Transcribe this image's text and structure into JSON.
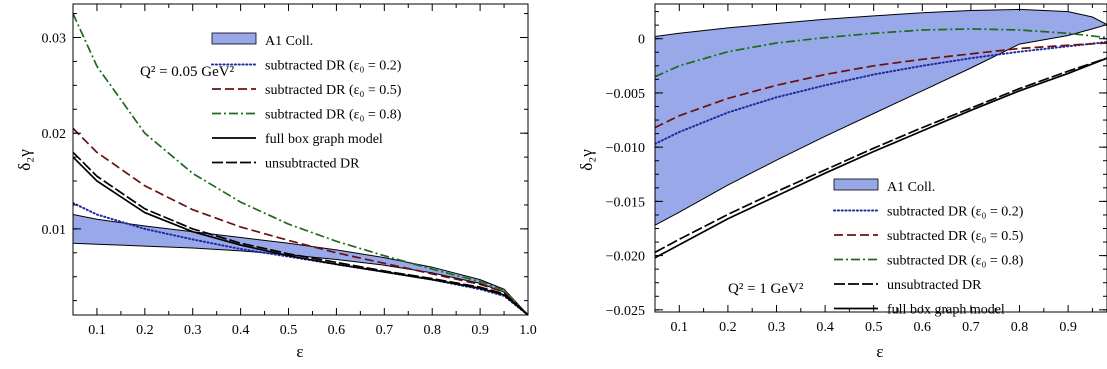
{
  "chart_data": [
    {
      "type": "line",
      "id": "left",
      "annotation": "Q² = 0.05 GeV²",
      "xlabel": "ε",
      "ylabel": "δ₂γ",
      "xlim": [
        0.05,
        1.0
      ],
      "ylim": [
        0.001,
        0.0335
      ],
      "xticks": [
        0.1,
        0.2,
        0.3,
        0.4,
        0.5,
        0.6,
        0.7,
        0.8,
        0.9,
        1.0
      ],
      "xtick_labels": [
        "0.1",
        "0.2",
        "0.3",
        "0.4",
        "0.5",
        "0.6",
        "0.7",
        "0.8",
        "0.9",
        "1.0"
      ],
      "yticks": [
        0.01,
        0.02,
        0.03
      ],
      "ytick_labels": [
        "0.01",
        "0.02",
        "0.03"
      ],
      "legend_position": "top-right",
      "band": {
        "name": "A1 Coll.",
        "color": "#99a8e8",
        "x": [
          0.05,
          0.1,
          0.2,
          0.3,
          0.4,
          0.5,
          0.6,
          0.7,
          0.8,
          0.9,
          0.95,
          1.0
        ],
        "upper": [
          0.0115,
          0.011,
          0.0103,
          0.0097,
          0.0091,
          0.0085,
          0.0078,
          0.007,
          0.006,
          0.0047,
          0.0037,
          0.001
        ],
        "lower": [
          0.0085,
          0.0084,
          0.0082,
          0.008,
          0.0077,
          0.0073,
          0.0068,
          0.0062,
          0.0054,
          0.0043,
          0.0034,
          0.001
        ]
      },
      "series": [
        {
          "name": "subtracted DR (ε₀ = 0.2)",
          "color": "#1f2aa0",
          "dash": "dotted",
          "x": [
            0.05,
            0.1,
            0.2,
            0.3,
            0.4,
            0.5,
            0.6,
            0.7,
            0.8,
            0.9,
            0.95,
            1.0
          ],
          "y": [
            0.0127,
            0.0115,
            0.01,
            0.0089,
            0.0079,
            0.0071,
            0.0063,
            0.0055,
            0.0047,
            0.0037,
            0.003,
            0.001
          ]
        },
        {
          "name": "subtracted DR (ε₀ = 0.5)",
          "color": "#6b1010",
          "dash": "dashed",
          "x": [
            0.05,
            0.1,
            0.2,
            0.3,
            0.4,
            0.5,
            0.6,
            0.7,
            0.8,
            0.9,
            0.95,
            1.0
          ],
          "y": [
            0.0205,
            0.018,
            0.0145,
            0.012,
            0.0102,
            0.0088,
            0.0075,
            0.0064,
            0.0053,
            0.0042,
            0.0034,
            0.001
          ]
        },
        {
          "name": "subtracted DR (ε₀ = 0.8)",
          "color": "#1c6b1c",
          "dash": "dashdot",
          "x": [
            0.05,
            0.1,
            0.2,
            0.3,
            0.4,
            0.5,
            0.6,
            0.7,
            0.8,
            0.9,
            0.95,
            1.0
          ],
          "y": [
            0.0325,
            0.027,
            0.02,
            0.0158,
            0.0128,
            0.0105,
            0.0087,
            0.0072,
            0.0058,
            0.0045,
            0.0036,
            0.001
          ]
        },
        {
          "name": "full box graph model",
          "color": "#000000",
          "dash": "solid",
          "x": [
            0.05,
            0.1,
            0.2,
            0.3,
            0.4,
            0.5,
            0.6,
            0.7,
            0.8,
            0.9,
            0.95,
            1.0
          ],
          "y": [
            0.0175,
            0.015,
            0.0117,
            0.0097,
            0.0083,
            0.0072,
            0.0063,
            0.0055,
            0.0047,
            0.0038,
            0.0031,
            0.001
          ]
        },
        {
          "name": "unsubtracted DR",
          "color": "#000000",
          "dash": "longdash",
          "x": [
            0.05,
            0.1,
            0.2,
            0.3,
            0.4,
            0.5,
            0.6,
            0.7,
            0.8,
            0.9,
            0.95,
            1.0
          ],
          "y": [
            0.018,
            0.0155,
            0.0121,
            0.01,
            0.0085,
            0.0074,
            0.0065,
            0.0056,
            0.0048,
            0.0039,
            0.0032,
            0.001
          ]
        }
      ],
      "legend_order": [
        "band",
        0,
        1,
        2,
        3,
        4
      ]
    },
    {
      "type": "line",
      "id": "right",
      "annotation": "Q² = 1 GeV²",
      "xlabel": "ε",
      "ylabel": "δ₂γ",
      "xlim": [
        0.05,
        0.98
      ],
      "ylim": [
        -0.0252,
        0.0032
      ],
      "xticks": [
        0.1,
        0.2,
        0.3,
        0.4,
        0.5,
        0.6,
        0.7,
        0.8,
        0.9
      ],
      "xtick_labels": [
        "0.1",
        "0.2",
        "0.3",
        "0.4",
        "0.5",
        "0.6",
        "0.7",
        "0.8",
        "0.9"
      ],
      "yticks": [
        0,
        -0.005,
        -0.01,
        -0.015,
        -0.02,
        -0.025
      ],
      "ytick_labels": [
        "0",
        "−0.005",
        "−0.010",
        "−0.015",
        "−0.020",
        "−0.025"
      ],
      "legend_position": "bottom-right",
      "band": {
        "name": "A1 Coll.",
        "color": "#99a8e8",
        "x": [
          0.05,
          0.1,
          0.2,
          0.3,
          0.4,
          0.5,
          0.6,
          0.7,
          0.8,
          0.9,
          0.95,
          0.98
        ],
        "upper": [
          0.0002,
          0.0005,
          0.001,
          0.0014,
          0.0018,
          0.0021,
          0.0024,
          0.0026,
          0.0027,
          0.0025,
          0.002,
          0.0013
        ],
        "lower": [
          -0.0172,
          -0.016,
          -0.0135,
          -0.0112,
          -0.009,
          -0.0069,
          -0.0048,
          -0.0027,
          -0.0005,
          0.0003,
          0.0009,
          0.0013
        ]
      },
      "series": [
        {
          "name": "subtracted DR (ε₀ = 0.2)",
          "color": "#1f2aa0",
          "dash": "dotted",
          "x": [
            0.05,
            0.1,
            0.2,
            0.3,
            0.4,
            0.5,
            0.6,
            0.7,
            0.8,
            0.9,
            0.98
          ],
          "y": [
            -0.0097,
            -0.0086,
            -0.0068,
            -0.0054,
            -0.0043,
            -0.0033,
            -0.0025,
            -0.0018,
            -0.0012,
            -0.0007,
            -0.0003
          ]
        },
        {
          "name": "subtracted DR (ε₀ = 0.5)",
          "color": "#6b1010",
          "dash": "dashed",
          "x": [
            0.05,
            0.1,
            0.2,
            0.3,
            0.4,
            0.5,
            0.6,
            0.7,
            0.8,
            0.9,
            0.98
          ],
          "y": [
            -0.0082,
            -0.0071,
            -0.0055,
            -0.0043,
            -0.0033,
            -0.0025,
            -0.0019,
            -0.0014,
            -0.0009,
            -0.0006,
            -0.0004
          ]
        },
        {
          "name": "subtracted DR (ε₀ = 0.8)",
          "color": "#1c6b1c",
          "dash": "dashdot",
          "x": [
            0.05,
            0.1,
            0.2,
            0.3,
            0.4,
            0.5,
            0.6,
            0.7,
            0.8,
            0.9,
            0.98
          ],
          "y": [
            -0.0035,
            -0.0025,
            -0.0012,
            -0.0004,
            0.0001,
            0.0005,
            0.0008,
            0.0009,
            0.0008,
            0.0005,
            0.0001
          ]
        },
        {
          "name": "unsubtracted DR",
          "color": "#000000",
          "dash": "longdash",
          "x": [
            0.05,
            0.1,
            0.2,
            0.3,
            0.4,
            0.5,
            0.6,
            0.7,
            0.8,
            0.9,
            0.98
          ],
          "y": [
            -0.0197,
            -0.0185,
            -0.0162,
            -0.0141,
            -0.0121,
            -0.0101,
            -0.0082,
            -0.0064,
            -0.0046,
            -0.003,
            -0.0018
          ]
        },
        {
          "name": "full box graph model",
          "color": "#000000",
          "dash": "solid",
          "x": [
            0.05,
            0.1,
            0.2,
            0.3,
            0.4,
            0.5,
            0.6,
            0.7,
            0.8,
            0.9,
            0.98
          ],
          "y": [
            -0.0202,
            -0.019,
            -0.0166,
            -0.0145,
            -0.0124,
            -0.0104,
            -0.0085,
            -0.0066,
            -0.0048,
            -0.0032,
            -0.0018
          ]
        }
      ],
      "legend_order": [
        "band",
        0,
        1,
        2,
        3,
        4
      ]
    }
  ]
}
